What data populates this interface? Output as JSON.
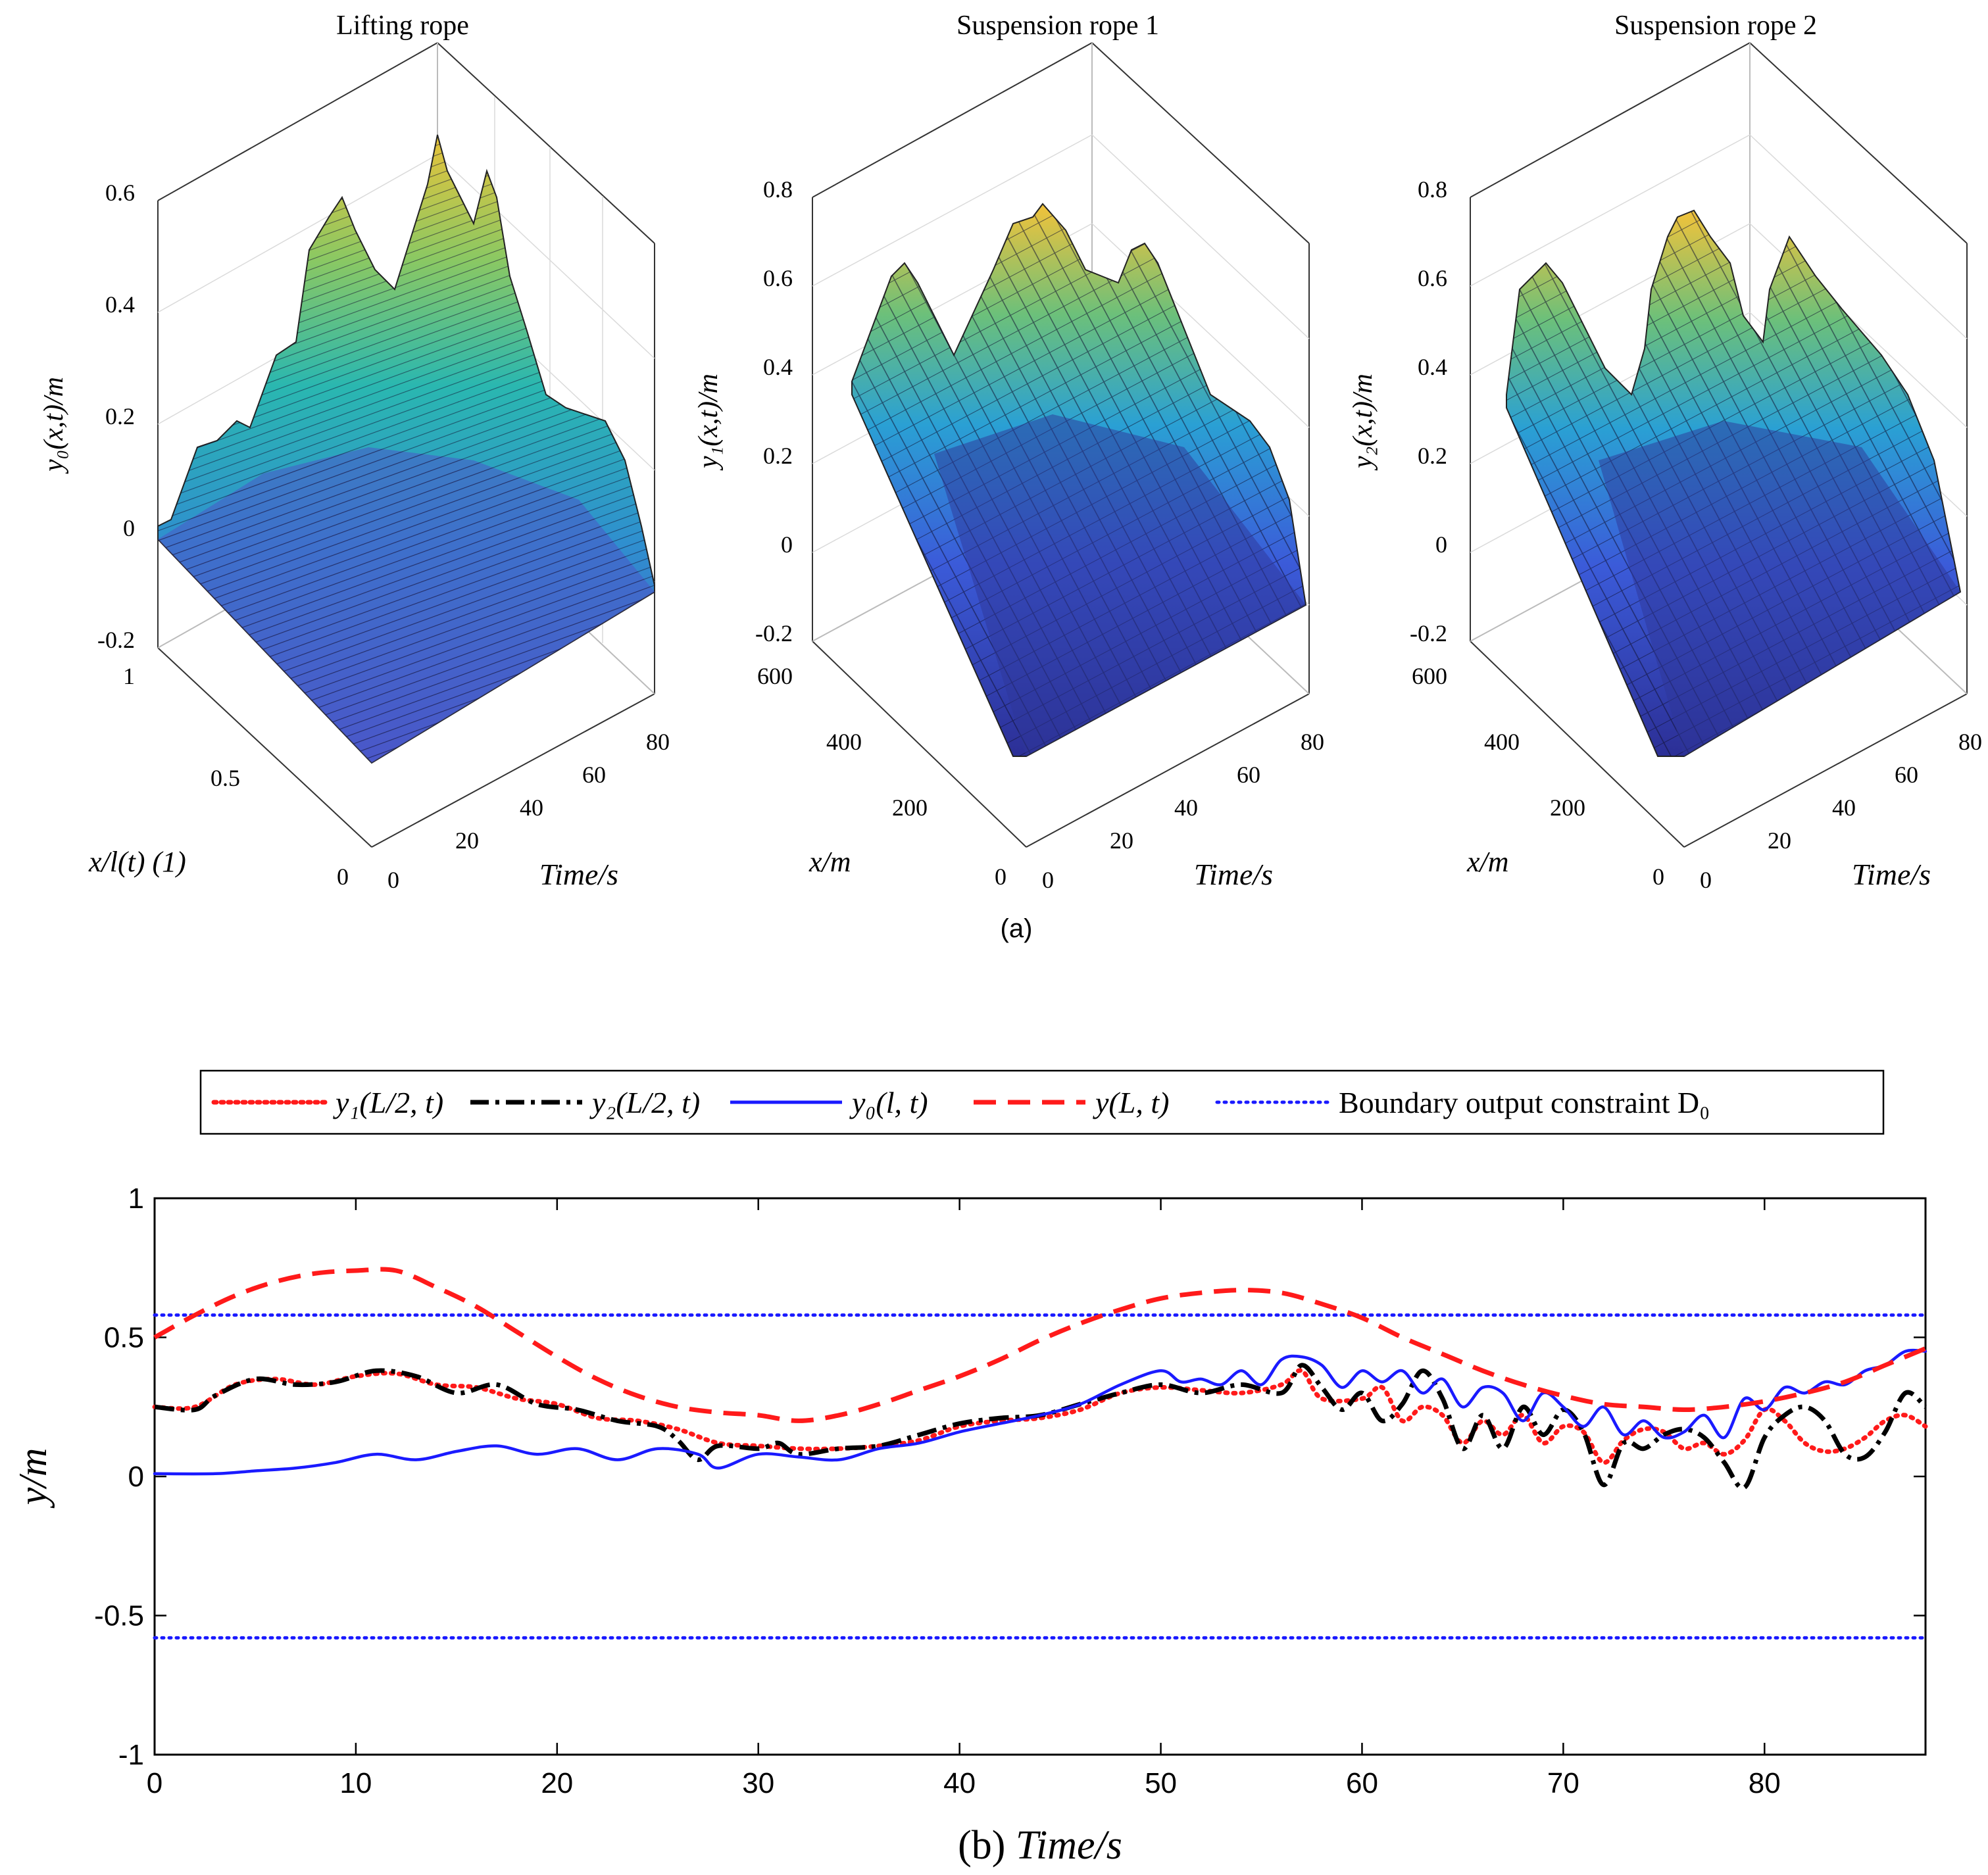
{
  "figure": {
    "sublabel_a": "(a)"
  },
  "chart_data": [
    {
      "type": "surface",
      "title": "Lifting rope",
      "zlabel": "y₀(x,t)/m",
      "xlabel": "x/l(t) (1)",
      "ylabel": "Time/s",
      "z_ticks": [
        "-0.2",
        "0",
        "0.2",
        "0.4",
        "0.6"
      ],
      "x_ticks": [
        "0",
        "0.5",
        "1"
      ],
      "t_ticks": [
        "0",
        "20",
        "40",
        "60",
        "80"
      ],
      "zlim": [
        -0.2,
        0.6
      ],
      "xlim": [
        0,
        1
      ],
      "tlim": [
        0,
        88
      ]
    },
    {
      "type": "surface",
      "title": "Suspension rope 1",
      "zlabel": "y₁(x,t)/m",
      "xlabel": "x/m",
      "ylabel": "Time/s",
      "z_ticks": [
        "-0.2",
        "0",
        "0.2",
        "0.4",
        "0.6",
        "0.8"
      ],
      "x_ticks": [
        "0",
        "200",
        "400",
        "600"
      ],
      "t_ticks": [
        "0",
        "20",
        "40",
        "60",
        "80"
      ],
      "zlim": [
        -0.2,
        0.8
      ],
      "xlim": [
        0,
        600
      ],
      "tlim": [
        0,
        88
      ]
    },
    {
      "type": "surface",
      "title": "Suspension rope 2",
      "zlabel": "y₂(x,t)/m",
      "xlabel": "x/m",
      "ylabel": "Time/s",
      "z_ticks": [
        "-0.2",
        "0",
        "0.2",
        "0.4",
        "0.6",
        "0.8"
      ],
      "x_ticks": [
        "0",
        "200",
        "400",
        "600"
      ],
      "t_ticks": [
        "0",
        "20",
        "40",
        "60",
        "80"
      ],
      "zlim": [
        -0.2,
        0.8
      ],
      "xlim": [
        0,
        600
      ],
      "tlim": [
        0,
        88
      ]
    },
    {
      "type": "line",
      "xlabel_prefix": "(b)",
      "xlabel": "Time/s",
      "ylabel": "y/m",
      "xlim": [
        0,
        88
      ],
      "ylim": [
        -1,
        1
      ],
      "x_ticks": [
        "0",
        "10",
        "20",
        "30",
        "40",
        "50",
        "60",
        "70",
        "80"
      ],
      "y_ticks": [
        "-1",
        "-0.5",
        "0",
        "0.5",
        "1"
      ],
      "legend": {
        "placement": "top-outside",
        "entries": [
          "y₁(L/2, t)",
          "y₂(L/2, t)",
          "y₀(l, t)",
          "y(L, t)",
          "Boundary output constraint D₀"
        ]
      },
      "series": [
        {
          "name": "y₁(L/2, t)",
          "color": "#ff1a1a",
          "style": "dotted",
          "x": [
            0,
            2,
            4,
            6,
            8,
            10,
            12,
            14,
            16,
            18,
            20,
            22,
            24,
            26,
            28,
            30,
            32,
            34,
            36,
            38,
            40,
            42,
            44,
            46,
            48,
            50,
            52,
            54,
            56,
            57,
            58,
            60,
            61,
            62,
            63,
            64,
            65,
            66,
            67,
            68,
            69,
            70,
            71,
            72,
            73,
            74,
            75,
            76,
            77,
            78,
            79,
            80,
            81,
            82,
            83,
            84,
            85,
            86,
            87,
            88
          ],
          "values": [
            0.25,
            0.25,
            0.33,
            0.35,
            0.33,
            0.36,
            0.37,
            0.33,
            0.32,
            0.28,
            0.26,
            0.21,
            0.2,
            0.17,
            0.12,
            0.11,
            0.1,
            0.1,
            0.11,
            0.13,
            0.18,
            0.2,
            0.21,
            0.24,
            0.3,
            0.32,
            0.31,
            0.3,
            0.33,
            0.38,
            0.28,
            0.28,
            0.32,
            0.2,
            0.25,
            0.22,
            0.12,
            0.2,
            0.15,
            0.22,
            0.12,
            0.18,
            0.16,
            0.05,
            0.13,
            0.17,
            0.16,
            0.1,
            0.12,
            0.08,
            0.13,
            0.24,
            0.2,
            0.12,
            0.09,
            0.1,
            0.14,
            0.2,
            0.22,
            0.18
          ]
        },
        {
          "name": "y₂(L/2, t)",
          "color": "#000000",
          "style": "dashdot",
          "x": [
            0,
            2,
            3,
            5,
            7,
            9,
            11,
            13,
            15,
            17,
            19,
            21,
            23,
            25,
            26,
            27,
            28,
            30,
            31,
            32,
            34,
            36,
            38,
            40,
            42,
            44,
            46,
            48,
            50,
            52,
            54,
            56,
            57,
            58,
            59,
            60,
            61,
            62,
            63,
            64,
            65,
            66,
            67,
            68,
            69,
            70,
            71,
            72,
            73,
            74,
            75,
            76,
            77,
            78,
            79,
            80,
            81,
            82,
            83,
            84,
            85,
            86,
            87,
            88
          ],
          "values": [
            0.25,
            0.24,
            0.29,
            0.35,
            0.33,
            0.34,
            0.38,
            0.36,
            0.3,
            0.33,
            0.26,
            0.24,
            0.2,
            0.18,
            0.13,
            0.06,
            0.11,
            0.1,
            0.12,
            0.08,
            0.1,
            0.11,
            0.15,
            0.19,
            0.21,
            0.22,
            0.26,
            0.3,
            0.33,
            0.3,
            0.33,
            0.3,
            0.4,
            0.32,
            0.24,
            0.3,
            0.2,
            0.26,
            0.38,
            0.28,
            0.1,
            0.22,
            0.1,
            0.25,
            0.15,
            0.24,
            0.16,
            -0.03,
            0.12,
            0.1,
            0.15,
            0.17,
            0.14,
            0.05,
            -0.04,
            0.14,
            0.22,
            0.25,
            0.2,
            0.08,
            0.07,
            0.16,
            0.3,
            0.25
          ]
        },
        {
          "name": "y₀(l, t)",
          "color": "#1a1aff",
          "style": "solid",
          "x": [
            0,
            3,
            5,
            7,
            9,
            11,
            13,
            15,
            17,
            19,
            21,
            23,
            25,
            27,
            28,
            30,
            32,
            34,
            36,
            38,
            40,
            42,
            44,
            46,
            48,
            50,
            51,
            52,
            53,
            54,
            55,
            56,
            57,
            58,
            59,
            60,
            61,
            62,
            63,
            64,
            65,
            66,
            67,
            68,
            69,
            70,
            71,
            72,
            73,
            74,
            75,
            76,
            77,
            78,
            79,
            80,
            81,
            82,
            83,
            84,
            85,
            86,
            87,
            88
          ],
          "values": [
            0.01,
            0.01,
            0.02,
            0.03,
            0.05,
            0.08,
            0.06,
            0.09,
            0.11,
            0.08,
            0.1,
            0.06,
            0.1,
            0.08,
            0.03,
            0.08,
            0.07,
            0.06,
            0.1,
            0.12,
            0.16,
            0.19,
            0.22,
            0.26,
            0.33,
            0.38,
            0.34,
            0.35,
            0.33,
            0.38,
            0.33,
            0.42,
            0.43,
            0.4,
            0.32,
            0.38,
            0.34,
            0.38,
            0.3,
            0.35,
            0.25,
            0.32,
            0.3,
            0.2,
            0.3,
            0.25,
            0.18,
            0.25,
            0.15,
            0.2,
            0.14,
            0.16,
            0.22,
            0.14,
            0.28,
            0.24,
            0.32,
            0.3,
            0.34,
            0.33,
            0.38,
            0.4,
            0.45,
            0.45
          ]
        },
        {
          "name": "y(L, t)",
          "color": "#ff1a1a",
          "style": "dashed",
          "x": [
            0,
            2,
            4,
            6,
            8,
            10,
            12,
            14,
            16,
            18,
            20,
            22,
            24,
            26,
            28,
            30,
            32,
            34,
            36,
            38,
            40,
            42,
            44,
            46,
            48,
            50,
            52,
            54,
            56,
            58,
            60,
            62,
            64,
            66,
            68,
            70,
            72,
            74,
            76,
            78,
            80,
            82,
            84,
            86,
            88
          ],
          "values": [
            0.5,
            0.58,
            0.65,
            0.7,
            0.73,
            0.74,
            0.74,
            0.68,
            0.61,
            0.52,
            0.43,
            0.35,
            0.29,
            0.25,
            0.23,
            0.22,
            0.2,
            0.22,
            0.26,
            0.31,
            0.36,
            0.42,
            0.49,
            0.55,
            0.6,
            0.64,
            0.66,
            0.67,
            0.66,
            0.62,
            0.57,
            0.5,
            0.44,
            0.38,
            0.33,
            0.29,
            0.26,
            0.25,
            0.24,
            0.25,
            0.27,
            0.3,
            0.34,
            0.4,
            0.46
          ]
        },
        {
          "name": "Boundary output constraint D₀ (upper)",
          "color": "#1a1aff",
          "style": "dotted",
          "x": [
            0,
            88
          ],
          "values": [
            0.58,
            0.58
          ]
        },
        {
          "name": "Boundary output constraint D₀ (lower)",
          "color": "#1a1aff",
          "style": "dotted",
          "x": [
            0,
            88
          ],
          "values": [
            -0.58,
            -0.58
          ]
        }
      ]
    }
  ]
}
